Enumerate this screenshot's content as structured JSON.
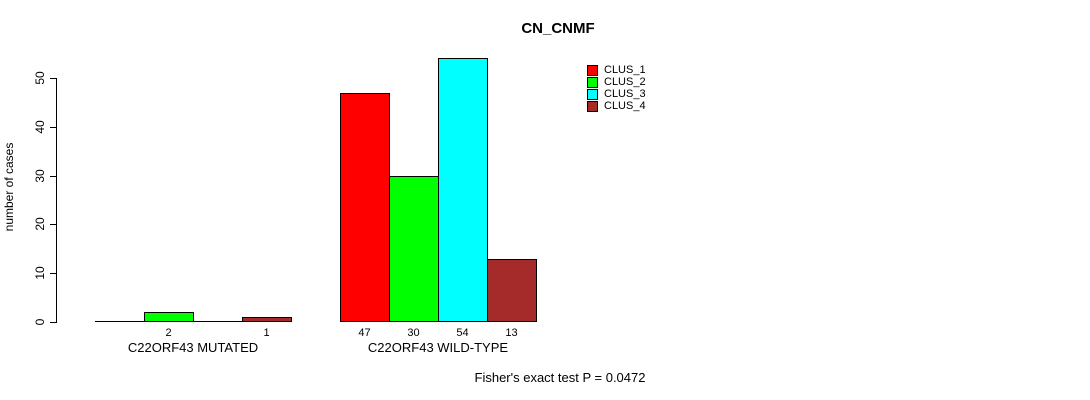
{
  "chart_data": {
    "type": "bar",
    "title": "CN_CNMF",
    "xlabel": "",
    "ylabel": "number of cases",
    "ylim": [
      0,
      50
    ],
    "yticks": [
      0,
      10,
      20,
      30,
      40,
      50
    ],
    "categories": [
      "C22ORF43 MUTATED",
      "C22ORF43 WILD-TYPE"
    ],
    "series": [
      {
        "name": "CLUS_1",
        "color": "#FF0000",
        "values": [
          0,
          47
        ]
      },
      {
        "name": "CLUS_2",
        "color": "#00FF00",
        "values": [
          2,
          30
        ]
      },
      {
        "name": "CLUS_3",
        "color": "#00FFFF",
        "values": [
          0,
          54
        ]
      },
      {
        "name": "CLUS_4",
        "color": "#A52A2A",
        "values": [
          1,
          13
        ]
      }
    ],
    "bar_value_labels_shown": [
      "2",
      "1",
      "47",
      "30",
      "54",
      "13"
    ],
    "show_zero_value_labels": false,
    "legend_position": "top-right",
    "grid": false,
    "caption": "Fisher's exact test P = 0.0472"
  }
}
